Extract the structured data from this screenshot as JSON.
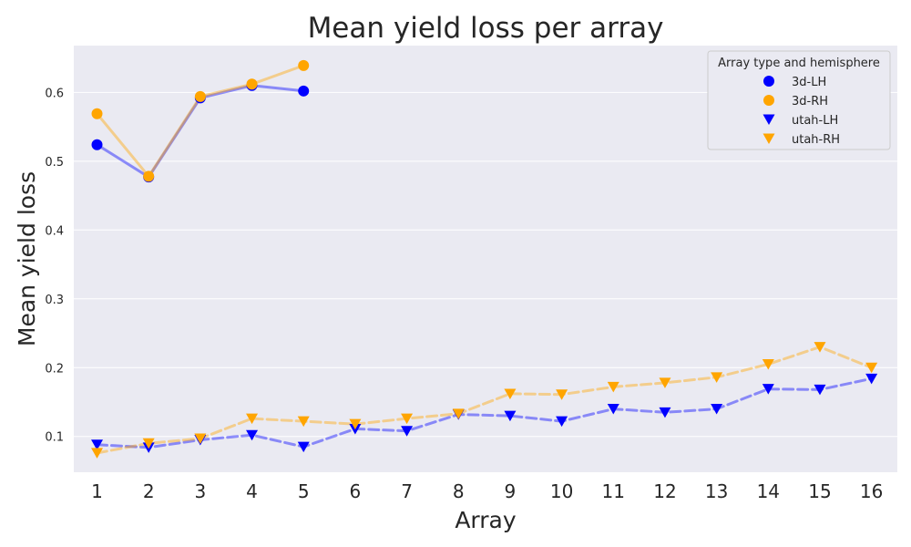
{
  "chart_data": {
    "type": "line",
    "title": "Mean yield loss per array",
    "xlabel": "Array",
    "ylabel": "Mean yield loss",
    "x": [
      1,
      2,
      3,
      4,
      5,
      6,
      7,
      8,
      9,
      10,
      11,
      12,
      13,
      14,
      15,
      16
    ],
    "xlim": [
      0.55,
      16.5
    ],
    "ylim": [
      0.048,
      0.668
    ],
    "yticks": [
      0.1,
      0.2,
      0.3,
      0.4,
      0.5,
      0.6
    ],
    "ytick_labels": [
      "0.1",
      "0.2",
      "0.3",
      "0.4",
      "0.5",
      "0.6"
    ],
    "grid": true,
    "legend": {
      "title": "Array type and hemisphere",
      "placement": "top-right"
    },
    "series": [
      {
        "name": "3d-LH",
        "color": "#0000ff",
        "marker": "circle",
        "line": "solid",
        "x": [
          1,
          2,
          3,
          4,
          5
        ],
        "values": [
          0.524,
          0.477,
          0.592,
          0.61,
          0.602
        ]
      },
      {
        "name": "3d-RH",
        "color": "#ffa500",
        "marker": "circle",
        "line": "solid",
        "x": [
          1,
          2,
          3,
          4,
          5
        ],
        "values": [
          0.569,
          0.478,
          0.594,
          0.612,
          0.639
        ]
      },
      {
        "name": "utah-LH",
        "color": "#0000ff",
        "marker": "triangle-down",
        "line": "dashed",
        "x": [
          1,
          2,
          3,
          4,
          5,
          6,
          7,
          8,
          9,
          10,
          11,
          12,
          13,
          14,
          15,
          16
        ],
        "values": [
          0.088,
          0.084,
          0.095,
          0.102,
          0.085,
          0.111,
          0.108,
          0.132,
          0.13,
          0.122,
          0.14,
          0.135,
          0.14,
          0.169,
          0.168,
          0.184
        ]
      },
      {
        "name": "utah-RH",
        "color": "#ffa500",
        "marker": "triangle-down",
        "line": "dashed",
        "x": [
          1,
          2,
          3,
          4,
          5,
          6,
          7,
          8,
          9,
          10,
          11,
          12,
          13,
          14,
          15,
          16
        ],
        "values": [
          0.076,
          0.09,
          0.097,
          0.126,
          0.122,
          0.118,
          0.126,
          0.133,
          0.162,
          0.161,
          0.172,
          0.178,
          0.186,
          0.205,
          0.23,
          0.2
        ]
      }
    ]
  }
}
